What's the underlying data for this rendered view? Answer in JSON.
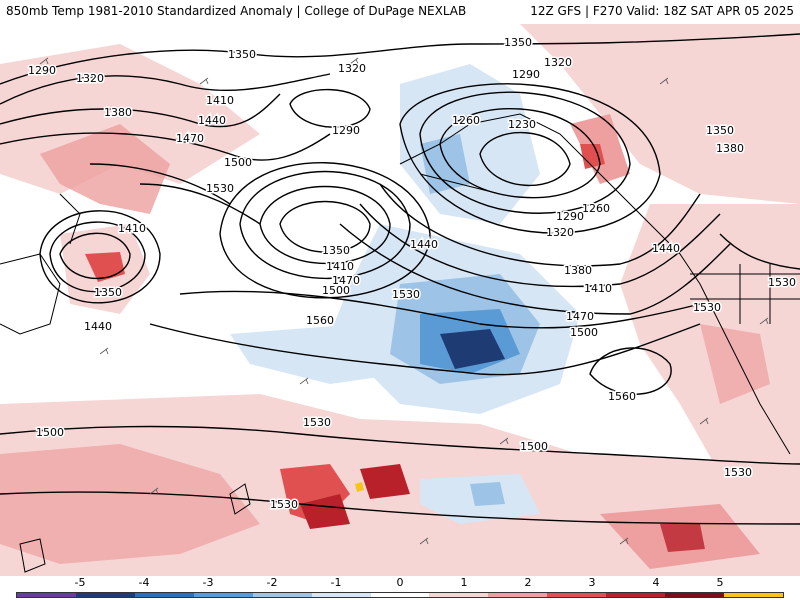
{
  "header": {
    "left_title": "850mb Temp 1981-2010 Standardized Anomaly | College of DuPage NEXLAB",
    "right_title": "12Z GFS | F270 Valid: 18Z SAT APR 05 2025"
  },
  "colorbar": {
    "ticks": [
      "-5",
      "-4",
      "-3",
      "-2",
      "-1",
      "0",
      "1",
      "2",
      "3",
      "4",
      "5"
    ],
    "colors": [
      "#6a3d9a",
      "#1f3b73",
      "#2f6fb8",
      "#5b9bd5",
      "#9dc3e6",
      "#d6e6f5",
      "#ffffff",
      "#f6d5d5",
      "#ee9f9f",
      "#e05050",
      "#b8202a",
      "#7a0f18",
      "#f5c518"
    ]
  },
  "contour_labels": [
    {
      "text": "1350"
    },
    {
      "text": "1350"
    },
    {
      "text": "1320"
    },
    {
      "text": "1320"
    },
    {
      "text": "1290"
    },
    {
      "text": "1290"
    },
    {
      "text": "1290"
    },
    {
      "text": "1320"
    },
    {
      "text": "1380"
    },
    {
      "text": "1410"
    },
    {
      "text": "1440"
    },
    {
      "text": "1470"
    },
    {
      "text": "1500"
    },
    {
      "text": "1530"
    },
    {
      "text": "1260"
    },
    {
      "text": "1230"
    },
    {
      "text": "1350"
    },
    {
      "text": "1380"
    },
    {
      "text": "1260"
    },
    {
      "text": "1290"
    },
    {
      "text": "1320"
    },
    {
      "text": "1440"
    },
    {
      "text": "1350"
    },
    {
      "text": "1410"
    },
    {
      "text": "1470"
    },
    {
      "text": "1500"
    },
    {
      "text": "1440"
    },
    {
      "text": "1530"
    },
    {
      "text": "1560"
    },
    {
      "text": "1380"
    },
    {
      "text": "1410"
    },
    {
      "text": "1470"
    },
    {
      "text": "1500"
    },
    {
      "text": "1410"
    },
    {
      "text": "1350"
    },
    {
      "text": "1440"
    },
    {
      "text": "1530"
    },
    {
      "text": "1530"
    },
    {
      "text": "1530"
    },
    {
      "text": "1560"
    },
    {
      "text": "1530"
    },
    {
      "text": "1500"
    },
    {
      "text": "1530"
    },
    {
      "text": "1530"
    },
    {
      "text": "1500"
    }
  ]
}
